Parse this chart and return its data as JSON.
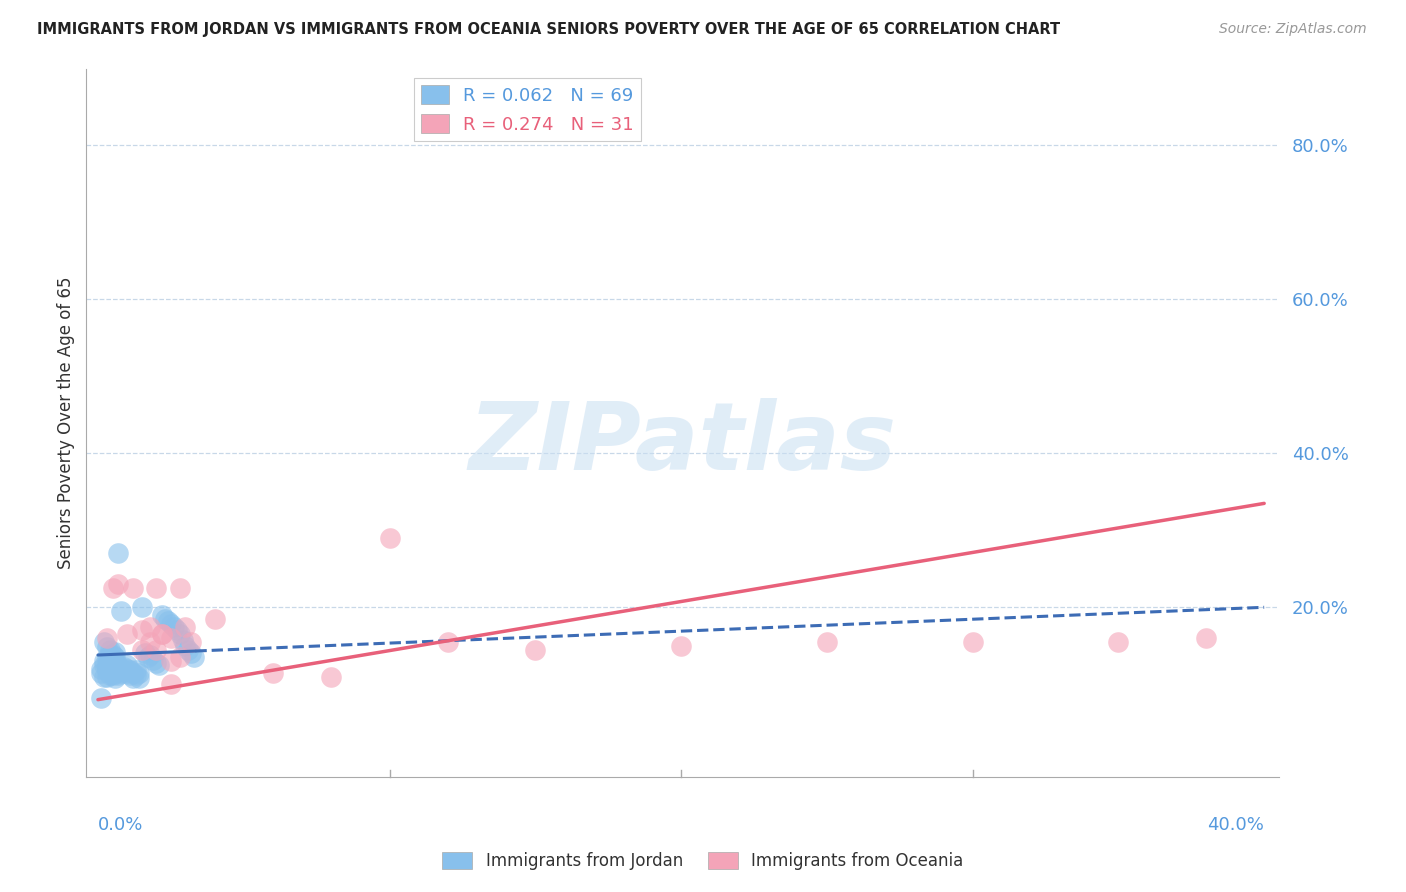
{
  "title": "IMMIGRANTS FROM JORDAN VS IMMIGRANTS FROM OCEANIA SENIORS POVERTY OVER THE AGE OF 65 CORRELATION CHART",
  "source": "Source: ZipAtlas.com",
  "ylabel": "Seniors Poverty Over the Age of 65",
  "right_ytick_labels": [
    "80.0%",
    "60.0%",
    "40.0%",
    "20.0%"
  ],
  "right_ytick_vals": [
    0.8,
    0.6,
    0.4,
    0.2
  ],
  "xlim_min": 0.0,
  "xlim_max": 0.4,
  "ylim_min": 0.0,
  "ylim_max": 0.9,
  "legend_jordan_R": "0.062",
  "legend_jordan_N": "69",
  "legend_oceania_R": "0.274",
  "legend_oceania_N": "31",
  "jordan_color": "#88C0EC",
  "oceania_color": "#F4A4B8",
  "jordan_line_color": "#3D6CB5",
  "oceania_line_color": "#E8607A",
  "watermark_text": "ZIPatlas",
  "jordan_x": [
    0.001,
    0.001,
    0.001,
    0.002,
    0.002,
    0.002,
    0.002,
    0.003,
    0.003,
    0.003,
    0.003,
    0.003,
    0.003,
    0.004,
    0.004,
    0.004,
    0.004,
    0.004,
    0.004,
    0.005,
    0.005,
    0.005,
    0.005,
    0.005,
    0.006,
    0.006,
    0.006,
    0.006,
    0.006,
    0.006,
    0.007,
    0.007,
    0.007,
    0.007,
    0.008,
    0.008,
    0.008,
    0.009,
    0.009,
    0.01,
    0.01,
    0.01,
    0.011,
    0.011,
    0.012,
    0.012,
    0.013,
    0.013,
    0.014,
    0.014,
    0.015,
    0.016,
    0.017,
    0.018,
    0.019,
    0.02,
    0.021,
    0.022,
    0.023,
    0.024,
    0.025,
    0.026,
    0.027,
    0.028,
    0.029,
    0.03,
    0.031,
    0.032,
    0.033
  ],
  "jordan_y": [
    0.115,
    0.12,
    0.082,
    0.125,
    0.11,
    0.13,
    0.155,
    0.11,
    0.118,
    0.122,
    0.128,
    0.135,
    0.148,
    0.112,
    0.118,
    0.125,
    0.132,
    0.138,
    0.145,
    0.112,
    0.118,
    0.125,
    0.132,
    0.138,
    0.108,
    0.115,
    0.122,
    0.128,
    0.135,
    0.142,
    0.112,
    0.118,
    0.125,
    0.27,
    0.115,
    0.12,
    0.195,
    0.118,
    0.122,
    0.115,
    0.12,
    0.125,
    0.112,
    0.118,
    0.108,
    0.115,
    0.112,
    0.118,
    0.108,
    0.115,
    0.2,
    0.14,
    0.135,
    0.138,
    0.132,
    0.128,
    0.125,
    0.19,
    0.185,
    0.182,
    0.178,
    0.175,
    0.17,
    0.165,
    0.158,
    0.15,
    0.145,
    0.14,
    0.135
  ],
  "oceania_x": [
    0.003,
    0.005,
    0.007,
    0.01,
    0.012,
    0.015,
    0.018,
    0.02,
    0.022,
    0.025,
    0.028,
    0.03,
    0.032,
    0.025,
    0.022,
    0.018,
    0.015,
    0.02,
    0.025,
    0.028,
    0.15,
    0.2,
    0.25,
    0.3,
    0.35,
    0.38,
    0.1,
    0.12,
    0.06,
    0.08,
    0.04
  ],
  "oceania_y": [
    0.16,
    0.225,
    0.23,
    0.165,
    0.225,
    0.17,
    0.175,
    0.225,
    0.165,
    0.16,
    0.225,
    0.175,
    0.155,
    0.13,
    0.165,
    0.155,
    0.145,
    0.145,
    0.1,
    0.135,
    0.145,
    0.15,
    0.155,
    0.155,
    0.155,
    0.16,
    0.29,
    0.155,
    0.115,
    0.11,
    0.185
  ],
  "jordan_line_x_start": 0.0,
  "jordan_line_x_solid_end": 0.033,
  "jordan_line_x_end": 0.4,
  "jordan_line_y_start": 0.138,
  "jordan_line_y_at_solid_end": 0.143,
  "jordan_line_y_end": 0.2,
  "oceania_line_x_start": 0.0,
  "oceania_line_x_end": 0.4,
  "oceania_line_y_start": 0.08,
  "oceania_line_y_end": 0.335
}
